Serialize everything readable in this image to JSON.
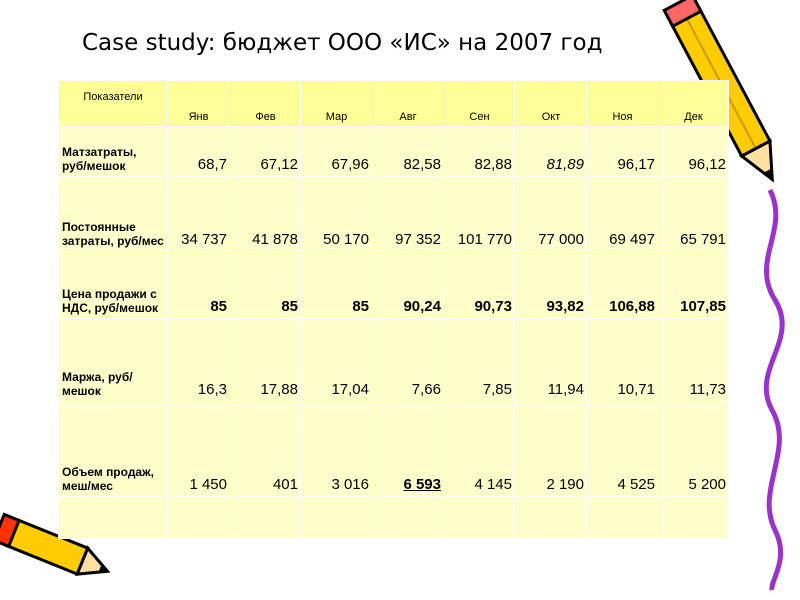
{
  "title": "Case study: бюджет ООО «ИС» на 2007 год",
  "table": {
    "header": [
      "Показатели",
      "Янв",
      "Фев",
      "Мар",
      "Авг",
      "Сен",
      "Окт",
      "Ноя",
      "Дек"
    ],
    "rows": [
      [
        "Матзатраты, руб/мешок",
        "68,7",
        "67,12",
        "67,96",
        "82,58",
        "82,88",
        "81,89",
        "96,17",
        "96,12"
      ],
      [
        "Постоянные затраты, руб/мес",
        "34 737",
        "41 878",
        "50 170",
        "97 352",
        "101 770",
        "77 000",
        "69 497",
        "65 791"
      ],
      [
        "Цена продажи с НДС, руб/мешок",
        "85",
        "85",
        "85",
        "90,24",
        "90,73",
        "93,82",
        "106,88",
        "107,85"
      ],
      [
        "Маржа, руб/мешок",
        "16,3",
        "17,88",
        "17,04",
        "7,66",
        "7,85",
        "11,94",
        "10,71",
        "11,73"
      ],
      [
        "Объем продаж, меш/мес",
        "1 450",
        "401",
        "3 016",
        "6 593",
        "4 145",
        "2 190",
        "4 525",
        "5 200"
      ]
    ]
  }
}
